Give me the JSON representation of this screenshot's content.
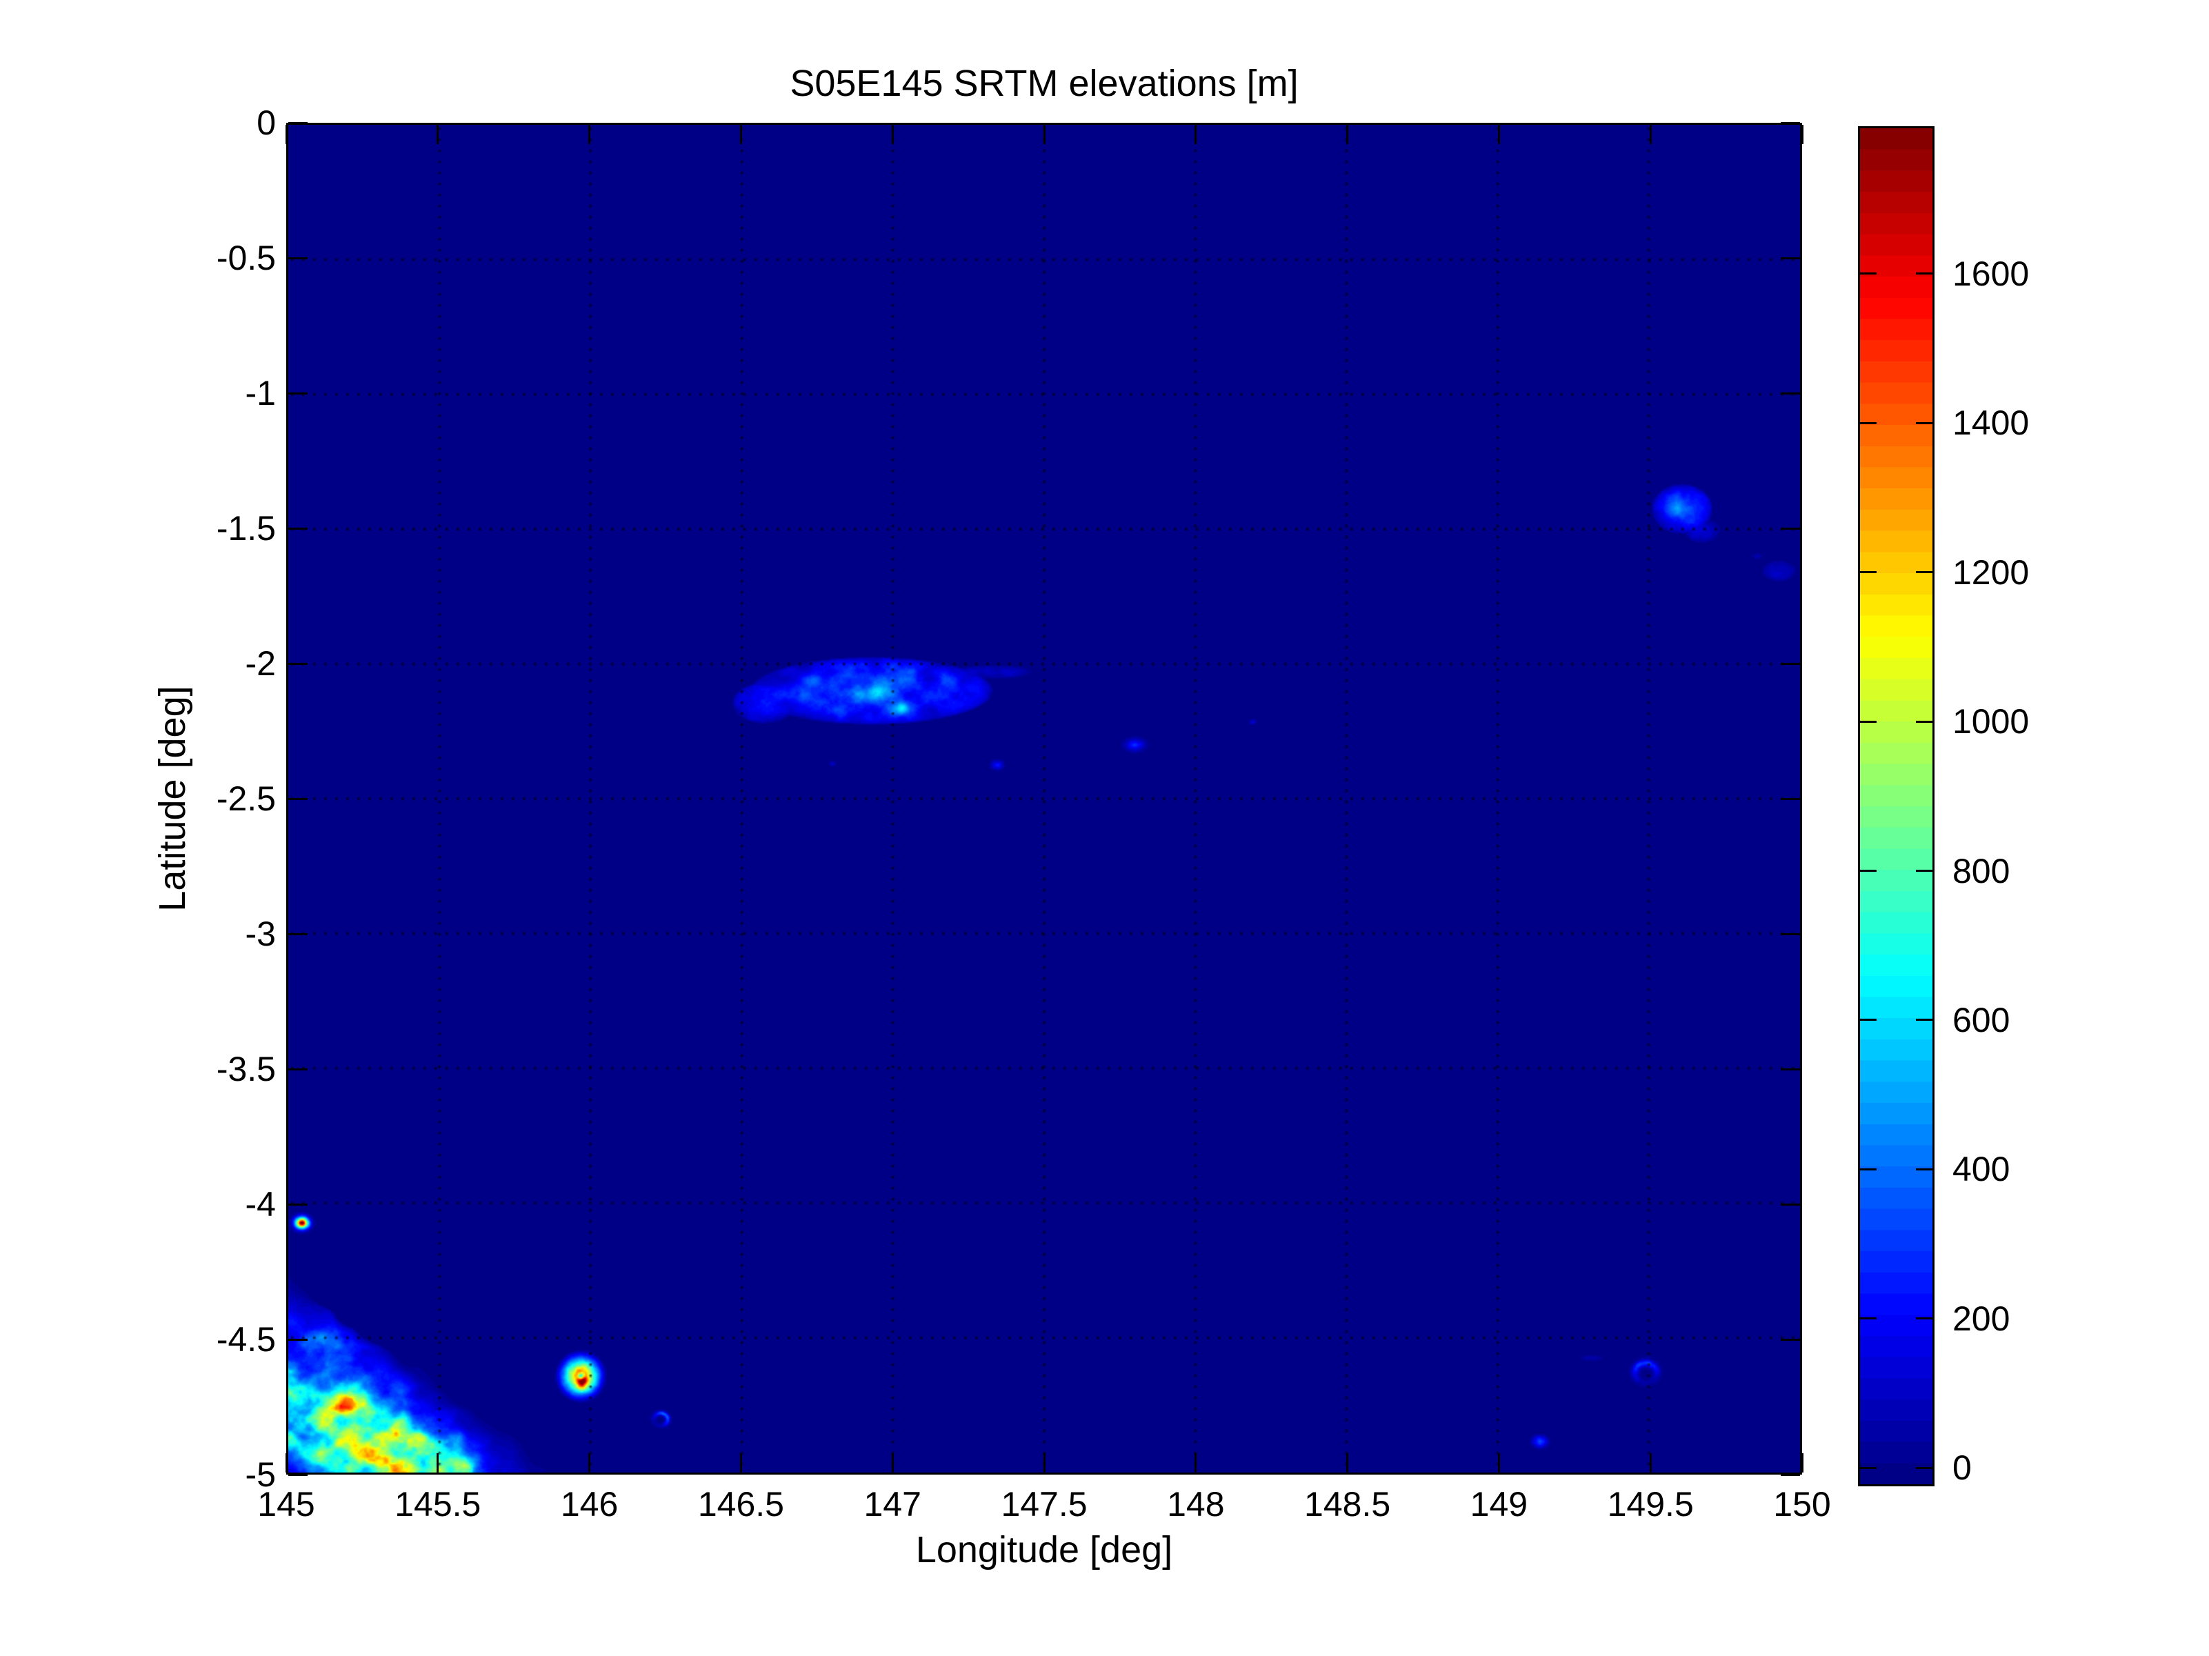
{
  "figure": {
    "title": "S05E145 SRTM elevations [m]"
  },
  "axes": {
    "xlabel": "Longitude [deg]",
    "ylabel": "Latitude [deg]",
    "xticks": [
      145,
      145.5,
      146,
      146.5,
      147,
      147.5,
      148,
      148.5,
      149,
      149.5,
      150
    ],
    "xtick_labels": [
      "145",
      "145.5",
      "146",
      "146.5",
      "147",
      "147.5",
      "148",
      "148.5",
      "149",
      "149.5",
      "150"
    ],
    "yticks": [
      0,
      -0.5,
      -1,
      -1.5,
      -2,
      -2.5,
      -3,
      -3.5,
      -4,
      -4.5,
      -5
    ],
    "ytick_labels": [
      "0",
      "-0.5",
      "-1",
      "-1.5",
      "-2",
      "-2.5",
      "-3",
      "-3.5",
      "-4",
      "-4.5",
      "-5"
    ],
    "grid_style": "dotted"
  },
  "colorbar": {
    "colormap": "jet",
    "min": -22,
    "max": 1795,
    "ticks": [
      0,
      200,
      400,
      600,
      800,
      1000,
      1200,
      1400,
      1600
    ],
    "tick_labels": [
      "0",
      "200",
      "400",
      "600",
      "800",
      "1000",
      "1200",
      "1400",
      "1600"
    ],
    "units": "m"
  },
  "chart_data": {
    "type": "heatmap",
    "title": "S05E145 SRTM elevations [m]",
    "xlabel": "Longitude [deg]",
    "ylabel": "Latitude [deg]",
    "x_range": [
      145,
      150
    ],
    "y_range": [
      -5,
      0
    ],
    "color_range": [
      -22,
      1795
    ],
    "colormap": "jet",
    "color_levels": 64,
    "grid": "dotted black at every 0.5 deg",
    "ocean_value_m": 0,
    "features": [
      {
        "type": "mainland",
        "name": "new-guinea-coast-adelbert-range",
        "coast_from": [
          145.0,
          -4.295
        ],
        "coast_to": [
          145.92,
          -5.03
        ],
        "coast_noise": 0.05,
        "ridge_peak_m": 1250,
        "ridge_center_along": 0.6,
        "ridge_sigma_along": 0.52,
        "ridge_dist": 0.3,
        "ridge_falloff": 0.2,
        "spines": [
          {
            "a": [
              145.205,
              -4.745
            ],
            "b": [
              145.585,
              -4.975
            ],
            "sigma": 0.045,
            "amp_m": 650
          },
          {
            "a": [
              145.44,
              -4.87
            ],
            "b": [
              145.64,
              -5.01
            ],
            "sigma": 0.022,
            "amp_m": 380
          }
        ],
        "hills": [
          {
            "center": [
              145.17,
              -4.5
            ],
            "sigma": [
              0.13,
              0.105
            ],
            "amp_m": 330
          }
        ],
        "max_m": 1790
      },
      {
        "type": "volcano",
        "name": "manam-island",
        "center": [
          145.045,
          -4.074
        ],
        "radius": [
          0.05,
          0.048
        ],
        "peak_m": 2600,
        "profile_pow": 2.6
      },
      {
        "type": "volcano",
        "name": "karkar-island",
        "center": [
          145.968,
          -4.643
        ],
        "radius": [
          0.088,
          0.1
        ],
        "peak_m": 1850,
        "profile_pow": 1.3,
        "caldera": {
          "depth_m": 1250,
          "sigma": 0.13
        },
        "spots": [
          {
            "offset": [
              0.004,
              -0.024
            ],
            "sigma": [
              0.015,
              0.022
            ],
            "amp_m": 700
          }
        ]
      },
      {
        "type": "ring",
        "name": "bagabag-island",
        "center": [
          146.232,
          -4.803
        ],
        "radius": 0.032,
        "peak_m": 420,
        "bright_dir_deg": 45
      },
      {
        "type": "blob",
        "name": "manus-island",
        "center": [
          146.93,
          -2.1
        ],
        "radius": [
          0.4,
          0.125
        ],
        "base_m": 340,
        "pow": 0.45,
        "noise_scale": 17,
        "clamp_m": 650,
        "spots": [
          {
            "center": [
              146.735,
              -2.065
            ],
            "sigma": [
              0.035,
              0.025
            ],
            "amp_m": 170
          },
          {
            "center": [
              146.96,
              -2.095
            ],
            "sigma": [
              0.05,
              0.035
            ],
            "amp_m": 200
          },
          {
            "center": [
              147.03,
              -2.165
            ],
            "sigma": [
              0.028,
              0.022
            ],
            "amp_m": 290
          },
          {
            "center": [
              146.88,
              -2.05
            ],
            "sigma": [
              0.05,
              0.02
            ],
            "amp_m": 120
          }
        ]
      },
      {
        "type": "blob",
        "name": "manus-west-lobe",
        "center": [
          146.575,
          -2.145
        ],
        "radius": [
          0.105,
          0.075
        ],
        "base_m": 240,
        "pow": 0.5,
        "noise_scale": 17
      },
      {
        "type": "blob",
        "name": "los-negros-east-tail",
        "center": [
          147.33,
          -2.03
        ],
        "radius": [
          0.13,
          0.025
        ],
        "base_m": 115,
        "pow": 0.8,
        "noise_scale": 20
      },
      {
        "type": "blob",
        "name": "mussau-island",
        "center": [
          149.61,
          -1.425
        ],
        "radius": [
          0.1,
          0.092
        ],
        "base_m": 340,
        "pow": 0.5,
        "noise_scale": 15,
        "spots": [
          {
            "center": [
              149.6,
              -1.43
            ],
            "sigma": [
              0.035,
              0.03
            ],
            "amp_m": 160
          }
        ]
      },
      {
        "type": "blob",
        "name": "mussau-southeast-tail",
        "center": [
          149.675,
          -1.505
        ],
        "radius": [
          0.06,
          0.045
        ],
        "base_m": 150,
        "pow": 0.7,
        "noise_scale": 18
      },
      {
        "type": "speck",
        "name": "baluan-island",
        "center": [
          147.345,
          -2.375
        ],
        "radius": [
          0.028,
          0.024
        ],
        "peak_m": 290,
        "pow": 1.2
      },
      {
        "type": "speck",
        "name": "islet-146-8e-2-37s",
        "center": [
          146.8,
          -2.37
        ],
        "radius": [
          0.013,
          0.011
        ],
        "peak_m": 150,
        "pow": 1.0
      },
      {
        "type": "speck",
        "name": "rambutyo-island",
        "center": [
          147.8,
          -2.3
        ],
        "radius": [
          0.05,
          0.034
        ],
        "peak_m": 330,
        "pow": 1.4
      },
      {
        "type": "speck",
        "name": "islet-148-2e-2-2s",
        "center": [
          148.19,
          -2.215
        ],
        "radius": [
          0.014,
          0.012
        ],
        "peak_m": 160,
        "pow": 1.0
      },
      {
        "type": "ring",
        "name": "garove-island-witu",
        "center": [
          149.49,
          -4.63
        ],
        "radius": 0.05,
        "peak_m": 350,
        "bright_dir_deg": 100
      },
      {
        "type": "speck",
        "name": "unea-island-witu",
        "center": [
          149.14,
          -4.885
        ],
        "radius": [
          0.036,
          0.032
        ],
        "peak_m": 440,
        "pow": 1.3
      },
      {
        "type": "speck",
        "name": "witu-islets",
        "center": [
          149.31,
          -4.575
        ],
        "radius": [
          0.042,
          0.01
        ],
        "peak_m": 95,
        "pow": 1.0
      },
      {
        "type": "blob",
        "name": "islets-149-9e-1-65s",
        "center": [
          149.93,
          -1.655
        ],
        "radius": [
          0.055,
          0.038
        ],
        "base_m": 140,
        "pow": 0.8,
        "noise_scale": 20
      },
      {
        "type": "speck",
        "name": "islet-149-86e-1-6s",
        "center": [
          149.86,
          -1.6
        ],
        "radius": [
          0.02,
          0.012
        ],
        "peak_m": 85,
        "pow": 1.0
      }
    ]
  }
}
